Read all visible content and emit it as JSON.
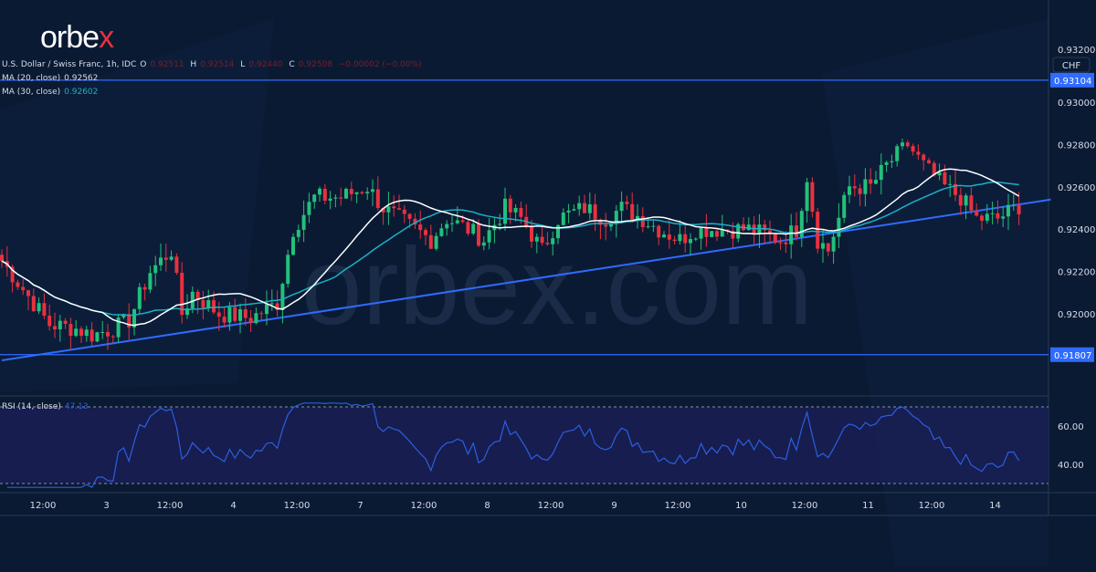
{
  "logo": {
    "text": "orbex",
    "accent": "#e8313f"
  },
  "watermark": "orbex.com",
  "header": {
    "symbol": "U.S. Dollar / Swiss Franc, 1h, IDC",
    "o_label": "O",
    "o": "0.92511",
    "h_label": "H",
    "h": "0.92514",
    "l_label": "L",
    "l": "0.92440",
    "c_label": "C",
    "c": "0.92508",
    "change": "−0.00002 (−0.00%)"
  },
  "ma20": {
    "label": "MA (20, close)",
    "value": "0.92562",
    "color": "#ffffff"
  },
  "ma30": {
    "label": "MA (30, close)",
    "value": "0.92602",
    "color": "#1ab0c7"
  },
  "rsi": {
    "label": "RSI (14, close)",
    "value": "47.13",
    "color": "#2b5fe0",
    "ticks": [
      "60.00",
      "40.00"
    ]
  },
  "currency": "CHF",
  "chart_data": {
    "type": "candlestick",
    "price_axis": {
      "ticks": [
        0.93,
        0.928,
        0.926,
        0.924,
        0.922,
        0.92
      ],
      "top_partial": "0.93200"
    },
    "x_ticks": [
      "12:00",
      "3",
      "12:00",
      "4",
      "12:00",
      "7",
      "12:00",
      "8",
      "12:00",
      "9",
      "12:00",
      "10",
      "12:00",
      "11",
      "12:00",
      "14"
    ],
    "levels": [
      {
        "price": 0.93104,
        "label": "0.93104"
      },
      {
        "price": 0.91807,
        "label": "0.91807"
      }
    ],
    "trendline": {
      "from_bar": 0,
      "from_price": 0.9178,
      "to_bar": 198,
      "to_price": 0.9254
    },
    "close_keypoints": [
      [
        0,
        0.9225
      ],
      [
        3,
        0.9215
      ],
      [
        9,
        0.9195
      ],
      [
        14,
        0.9193
      ],
      [
        17,
        0.919
      ],
      [
        21,
        0.9193
      ],
      [
        24,
        0.9197
      ],
      [
        28,
        0.922
      ],
      [
        32,
        0.923
      ],
      [
        34,
        0.92
      ],
      [
        36,
        0.921
      ],
      [
        41,
        0.92
      ],
      [
        47,
        0.9198
      ],
      [
        52,
        0.9205
      ],
      [
        55,
        0.924
      ],
      [
        59,
        0.9255
      ],
      [
        64,
        0.9255
      ],
      [
        69,
        0.926
      ],
      [
        72,
        0.925
      ],
      [
        78,
        0.924
      ],
      [
        81,
        0.9235
      ],
      [
        84,
        0.9245
      ],
      [
        88,
        0.924
      ],
      [
        91,
        0.9235
      ],
      [
        95,
        0.925
      ],
      [
        98,
        0.9245
      ],
      [
        102,
        0.923
      ],
      [
        105,
        0.9245
      ],
      [
        110,
        0.925
      ],
      [
        114,
        0.9245
      ],
      [
        117,
        0.925
      ],
      [
        121,
        0.9245
      ],
      [
        124,
        0.924
      ],
      [
        128,
        0.9235
      ],
      [
        131,
        0.924
      ],
      [
        136,
        0.924
      ],
      [
        141,
        0.924
      ],
      [
        147,
        0.9235
      ],
      [
        150,
        0.924
      ],
      [
        152,
        0.9265
      ],
      [
        154,
        0.9235
      ],
      [
        156,
        0.923
      ],
      [
        158,
        0.9245
      ],
      [
        160,
        0.926
      ],
      [
        164,
        0.926
      ],
      [
        167,
        0.927
      ],
      [
        171,
        0.928
      ],
      [
        174,
        0.927
      ],
      [
        178,
        0.926
      ],
      [
        181,
        0.9255
      ],
      [
        184,
        0.9245
      ],
      [
        188,
        0.9245
      ],
      [
        192,
        0.9251
      ]
    ]
  }
}
